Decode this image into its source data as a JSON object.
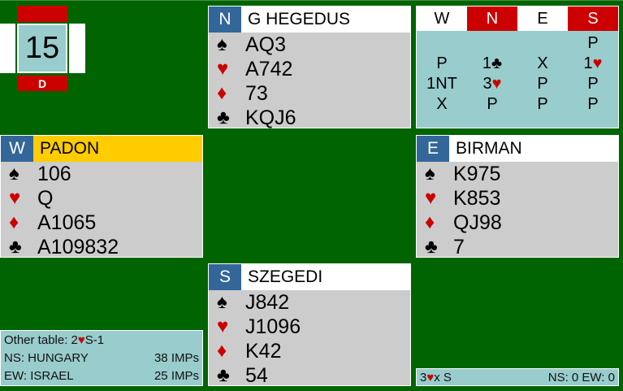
{
  "board": {
    "number": "15",
    "dealer": "D"
  },
  "north": {
    "seat": "N",
    "name": "G HEGEDUS",
    "spades": "AQ3",
    "hearts": "A742",
    "diamonds": "73",
    "clubs": "KQJ6"
  },
  "west": {
    "seat": "W",
    "name": "PADON",
    "spades": "106",
    "hearts": "Q",
    "diamonds": "A1065",
    "clubs": "A109832",
    "highlight": "#ffcc00"
  },
  "east": {
    "seat": "E",
    "name": "BIRMAN",
    "spades": "K975",
    "hearts": "K853",
    "diamonds": "QJ98",
    "clubs": "7"
  },
  "south": {
    "seat": "S",
    "name": "SZEGEDI",
    "spades": "J842",
    "hearts": "J1096",
    "diamonds": "K42",
    "clubs": "54"
  },
  "auction": {
    "headers": [
      "W",
      "N",
      "E",
      "S"
    ],
    "vulnerable": [
      "N",
      "S"
    ],
    "rows": [
      [
        "",
        "",
        "",
        "P"
      ],
      [
        "P",
        "1♣",
        "X",
        "1♥"
      ],
      [
        "1NT",
        "3♥",
        "P",
        "P"
      ],
      [
        "X",
        "P",
        "P",
        "P"
      ]
    ]
  },
  "other_table": {
    "label": "Other table: 2",
    "suit": "♥",
    "rest": "S-1"
  },
  "teams": [
    {
      "side": "NS: HUNGARY",
      "imps": "38 IMPs"
    },
    {
      "side": "EW: ISRAEL",
      "imps": "25 IMPs"
    }
  ],
  "contract": {
    "level": "3",
    "suit": "♥",
    "rest": "x S",
    "score": "NS: 0 EW: 0"
  },
  "colors": {
    "background": "#006400",
    "seat": "#336699",
    "vul": "#cc0000",
    "panel": "#99cccc",
    "hand": "#cccccc"
  }
}
